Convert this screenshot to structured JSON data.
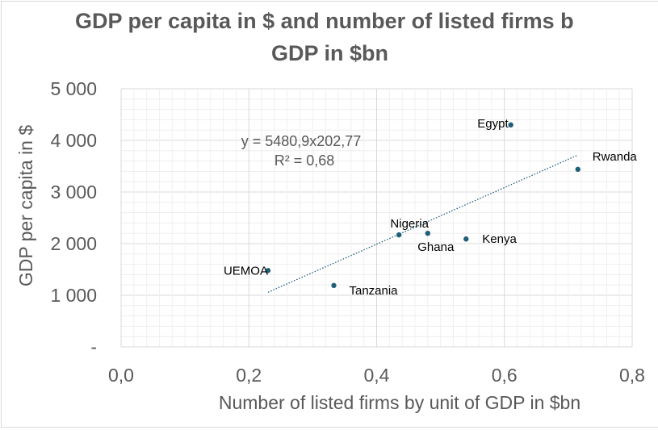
{
  "chart_data": {
    "type": "scatter",
    "title_line1": "GDP per capita in $ and number of listed firms b",
    "title_line2": "GDP in $bn",
    "xlabel": "Number of listed firms by unit of GDP in $bn",
    "ylabel": "GDP per capita in $",
    "xlim": [
      0,
      0.8
    ],
    "ylim": [
      0,
      5000
    ],
    "x_ticks": [
      0,
      0.2,
      0.4,
      0.6,
      0.8
    ],
    "x_tick_labels": [
      "0,0",
      "0,2",
      "0,4",
      "0,6",
      "0,8"
    ],
    "y_ticks": [
      0,
      1000,
      2000,
      3000,
      4000,
      5000
    ],
    "y_tick_labels": [
      "-",
      "1 000",
      "2 000",
      "3 000",
      "4 000",
      "5 000"
    ],
    "grid": true,
    "marker_color": "#1f5f7a",
    "points": [
      {
        "name": "Egypt",
        "x": 0.61,
        "y": 4300
      },
      {
        "name": "Rwanda",
        "x": 0.715,
        "y": 3440
      },
      {
        "name": "Nigeria",
        "x": 0.435,
        "y": 2170
      },
      {
        "name": "Ghana",
        "x": 0.48,
        "y": 2200
      },
      {
        "name": "Kenya",
        "x": 0.54,
        "y": 2090
      },
      {
        "name": "UEMOA",
        "x": 0.23,
        "y": 1480
      },
      {
        "name": "Tanzania",
        "x": 0.333,
        "y": 1190
      }
    ],
    "trendline": {
      "type": "linear",
      "equation": "y = 5480,9x202,77",
      "r2": "R² = 0,68",
      "x_range": [
        0.23,
        0.715
      ],
      "slope": 5480.9,
      "intercept": -202.77,
      "color": "#1f5f7a"
    }
  }
}
